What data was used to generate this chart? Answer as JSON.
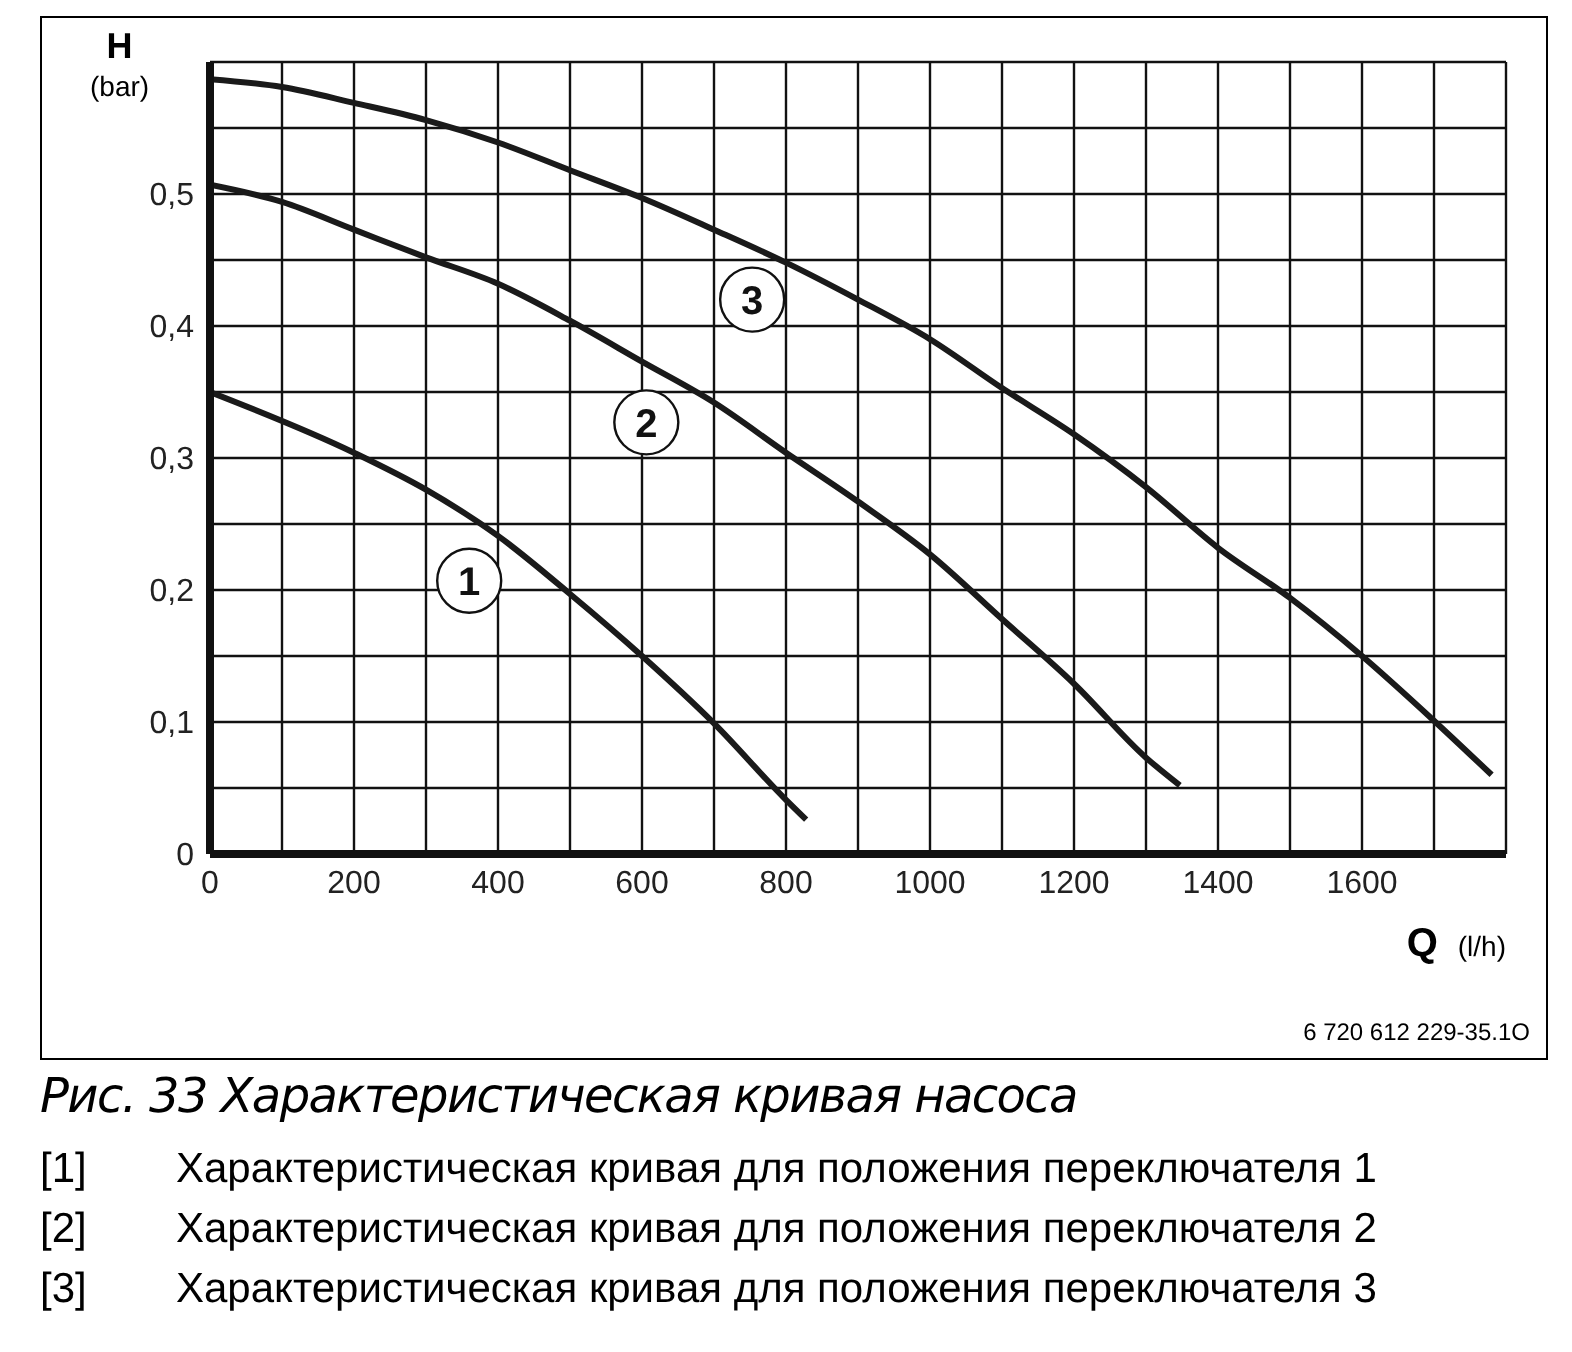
{
  "chart_data": {
    "type": "line",
    "title": "Рис. 33  Характеристическая кривая насоса",
    "xlabel": "Q (l/h)",
    "ylabel": "H (bar)",
    "xlim": [
      0,
      1800
    ],
    "xticks": [
      0,
      {
        "value": 100,
        "label": null
      },
      200,
      {
        "value": 300,
        "label": null
      },
      400,
      {
        "value": 500,
        "label": null
      },
      600,
      {
        "value": 700,
        "label": null
      },
      800,
      {
        "value": 900,
        "label": null
      },
      1000,
      {
        "value": 1100,
        "label": null
      },
      1200,
      {
        "value": 1300,
        "label": null
      },
      1400,
      {
        "value": 1500,
        "label": null
      },
      1600,
      {
        "value": 1700,
        "label": null
      },
      {
        "value": 1800,
        "label": null
      }
    ],
    "ylim": [
      0,
      0.6
    ],
    "yticks": [
      0,
      {
        "value": 0.05,
        "label": null
      },
      {
        "value": 0.1,
        "label": "0,1"
      },
      {
        "value": 0.15,
        "label": null
      },
      {
        "value": 0.2,
        "label": "0,2"
      },
      {
        "value": 0.25,
        "label": null
      },
      {
        "value": 0.3,
        "label": "0,3"
      },
      {
        "value": 0.35,
        "label": null
      },
      {
        "value": 0.4,
        "label": "0,4"
      },
      {
        "value": 0.45,
        "label": null
      },
      {
        "value": 0.5,
        "label": "0,5"
      },
      {
        "value": 0.55,
        "label": null
      },
      {
        "value": 0.6,
        "label": null
      }
    ],
    "grid": true,
    "series": [
      {
        "color": "#1a1a1a",
        "x": [
          0,
          200,
          300,
          400,
          500,
          600,
          700,
          800,
          828
        ],
        "values": [
          0.35,
          0.304,
          0.276,
          0.241,
          0.197,
          0.15,
          0.099,
          0.041,
          0.026
        ]
      },
      {
        "color": "#1a1a1a",
        "x": [
          0,
          100,
          200,
          300,
          400,
          500,
          600,
          700,
          800,
          900,
          1000,
          1100,
          1200,
          1300,
          1347
        ],
        "values": [
          0.507,
          0.494,
          0.473,
          0.452,
          0.432,
          0.404,
          0.373,
          0.342,
          0.304,
          0.267,
          0.227,
          0.178,
          0.129,
          0.073,
          0.052
        ]
      },
      {
        "color": "#1a1a1a",
        "x": [
          0,
          100,
          200,
          300,
          400,
          500,
          600,
          700,
          800,
          900,
          1000,
          1100,
          1200,
          1300,
          1400,
          1500,
          1600,
          1700,
          1780
        ],
        "values": [
          0.587,
          0.581,
          0.569,
          0.556,
          0.539,
          0.518,
          0.497,
          0.473,
          0.448,
          0.42,
          0.39,
          0.353,
          0.318,
          0.278,
          0.232,
          0.194,
          0.15,
          0.101,
          0.06
        ]
      }
    ],
    "annotations": [
      "6 720 612 229-35.1O",
      "[1]\tХарактеристическая кривая для положения переключателя 1",
      "[2]\tХарактеристическая кривая для положения переключателя 2",
      "[3]\tХарактеристическая кривая для положения переключателя 3",
      {
        "text": "1",
        "x": 360,
        "y": 0.207
      },
      {
        "text": "2",
        "x": 606,
        "y": 0.327
      },
      {
        "text": "3",
        "x": 753,
        "y": 0.42
      }
    ]
  }
}
